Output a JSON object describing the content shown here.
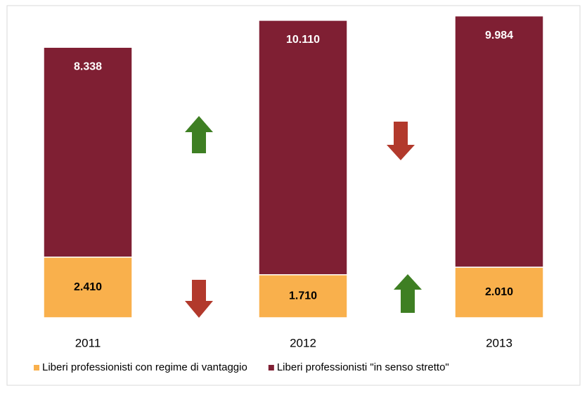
{
  "chart_data": {
    "type": "stacked_bar",
    "categories": [
      "2011",
      "2012",
      "2013"
    ],
    "series": [
      {
        "name": "Liberi professionisti con regime di vantaggio",
        "color": "#f9b04c",
        "values": [
          2410,
          1710,
          2010
        ],
        "value_labels": [
          "2.410",
          "1.710",
          "2.010"
        ]
      },
      {
        "name": "Liberi professionisti \"in senso stretto\"",
        "color": "#7f1f33",
        "values": [
          8338,
          10110,
          9984
        ],
        "value_labels": [
          "8.338",
          "10.110",
          "9.984"
        ]
      }
    ]
  }
}
